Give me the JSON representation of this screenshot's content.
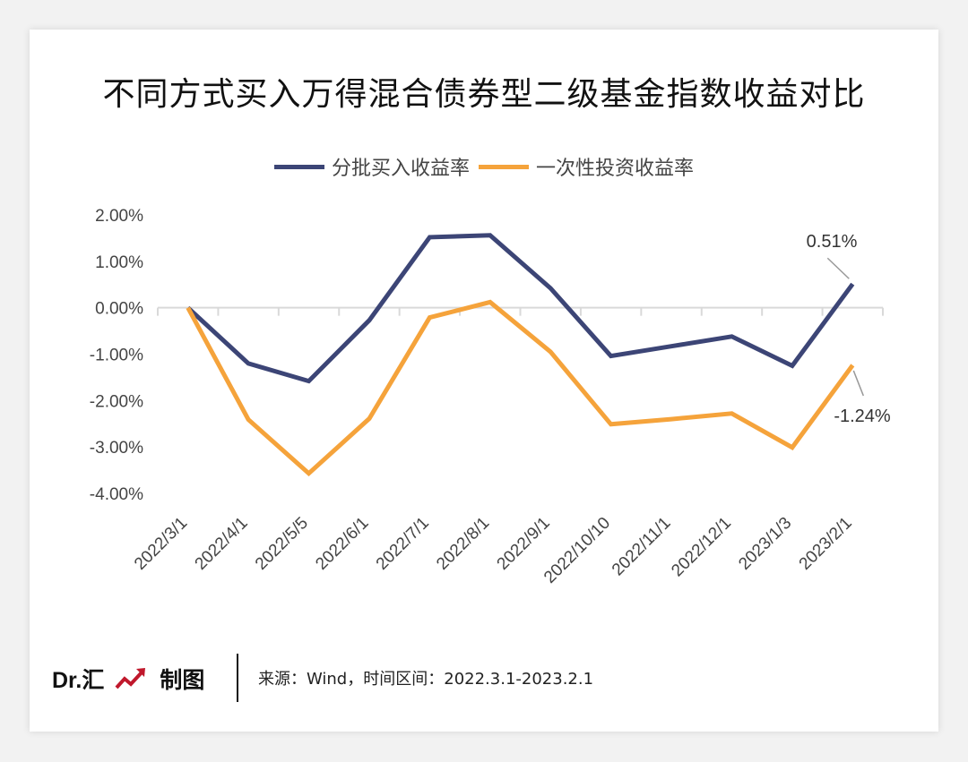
{
  "title": "不同方式买入万得混合债券型二级基金指数收益对比",
  "footer": {
    "brand": "Dr.汇",
    "brand_suffix": "制图",
    "source": "来源：Wind，时间区间：2022.3.1-2023.2.1"
  },
  "colors": {
    "series1": "#3c4576",
    "series2": "#f5a33b",
    "axis": "#d9d9d9",
    "brand_icon": "#c0182c"
  },
  "chart_data": {
    "type": "line",
    "title": "不同方式买入万得混合债券型二级基金指数收益对比",
    "categories": [
      "2022/3/1",
      "2022/4/1",
      "2022/5/5",
      "2022/6/1",
      "2022/7/1",
      "2022/8/1",
      "2022/9/1",
      "2022/10/10",
      "2022/11/1",
      "2022/12/1",
      "2023/1/3",
      "2023/2/1"
    ],
    "series": [
      {
        "name": "分批买入收益率",
        "values": [
          0.0,
          -1.2,
          -1.58,
          -0.27,
          1.52,
          1.56,
          0.42,
          -1.04,
          -0.83,
          -0.62,
          -1.25,
          0.51
        ]
      },
      {
        "name": "一次性投资收益率",
        "values": [
          0.0,
          -2.41,
          -3.57,
          -2.39,
          -0.21,
          0.12,
          -0.95,
          -2.51,
          -2.4,
          -2.28,
          -3.01,
          -1.24
        ]
      }
    ],
    "yticks": [
      "2.00%",
      "1.00%",
      "0.00%",
      "-1.00%",
      "-2.00%",
      "-3.00%",
      "-4.00%"
    ],
    "ylim": [
      -4,
      2
    ],
    "unit": "%",
    "annotations": [
      "0.51%",
      "-1.24%"
    ],
    "legend": "top",
    "grid": false
  }
}
